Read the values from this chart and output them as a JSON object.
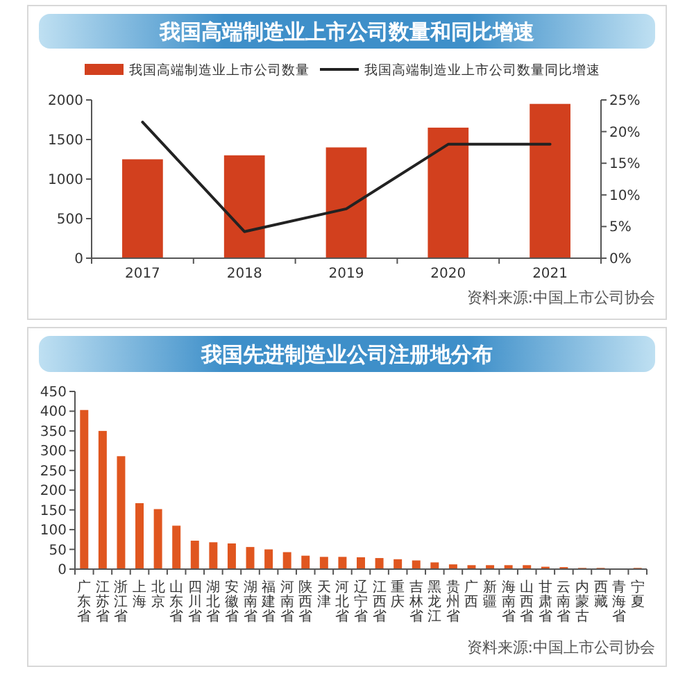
{
  "chart_data": [
    {
      "type": "bar",
      "title": "我国高端制造业上市公司数量和同比增速",
      "categories": [
        "2017",
        "2018",
        "2019",
        "2020",
        "2021"
      ],
      "series": [
        {
          "name": "我国高端制造业上市公司数量",
          "color": "#d2401e",
          "values": [
            1250,
            1300,
            1400,
            1650,
            1950
          ]
        },
        {
          "name": "我国高端制造业上市公司数量同比增速",
          "type": "line",
          "axis": "y2",
          "color": "#222222",
          "values": [
            21.5,
            4.2,
            7.8,
            18,
            18
          ]
        }
      ],
      "ylim": [
        0,
        2000
      ],
      "yticks": [
        0,
        500,
        1000,
        1500,
        2000
      ],
      "y2lim": [
        0,
        25
      ],
      "y2ticks": [
        {
          "value": 0,
          "label": "0%"
        },
        {
          "value": 5,
          "label": "5%"
        },
        {
          "value": 10,
          "label": "10%"
        },
        {
          "value": 15,
          "label": "15%"
        },
        {
          "value": 20,
          "label": "20%"
        },
        {
          "value": 25,
          "label": "25%"
        }
      ],
      "legend": "top",
      "marker": "none",
      "line_style": "solid",
      "annotations": [
        "资料来源:中国上市公司协会"
      ]
    },
    {
      "type": "bar",
      "title": "我国先进制造业公司注册地分布",
      "categories": [
        "广东省",
        "江苏省",
        "浙江省",
        "上海",
        "北京",
        "山东省",
        "四川省",
        "湖北省",
        "安徽省",
        "湖南省",
        "福建省",
        "河南省",
        "陕西省",
        "天津",
        "河北省",
        "辽宁省",
        "江西省",
        "重庆",
        "吉林省",
        "黑龙江",
        "贵州省",
        "广西",
        "新疆",
        "海南省",
        "山西省",
        "甘肃省",
        "云南省",
        "内蒙古",
        "西藏",
        "青海省",
        "宁夏"
      ],
      "values": [
        403,
        350,
        286,
        167,
        152,
        110,
        72,
        68,
        65,
        56,
        50,
        43,
        34,
        31,
        31,
        30,
        28,
        25,
        22,
        17,
        12,
        10,
        10,
        10,
        10,
        6,
        5,
        3,
        3,
        null,
        3
      ],
      "color": "#e0561f",
      "ylim": [
        0,
        450
      ],
      "yticks": [
        0,
        50,
        100,
        150,
        200,
        250,
        300,
        350,
        400,
        450
      ],
      "annotations": [
        "资料来源:中国上市公司协会"
      ]
    }
  ]
}
